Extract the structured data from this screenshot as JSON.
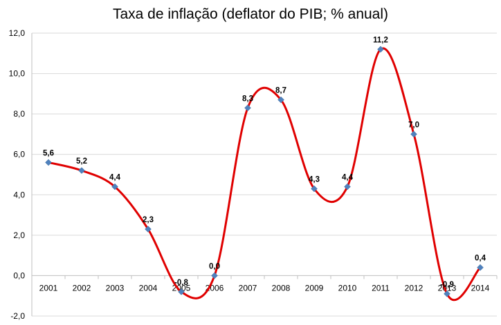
{
  "chart_data": {
    "type": "line",
    "title": "Taxa de inflação (deflator do PIB; % anual)",
    "xlabel": "",
    "ylabel": "",
    "categories": [
      "2001",
      "2002",
      "2003",
      "2004",
      "2005",
      "2006",
      "2007",
      "2008",
      "2009",
      "2010",
      "2011",
      "2012",
      "2013",
      "2014"
    ],
    "series": [
      {
        "values": [
          5.6,
          5.2,
          4.4,
          2.3,
          -0.8,
          0.0,
          8.3,
          8.7,
          4.3,
          4.4,
          11.2,
          7.0,
          -0.9,
          0.4
        ],
        "data_labels": [
          "5,6",
          "5,2",
          "4,4",
          "2,3",
          "-0,8",
          "0,0",
          "8,3",
          "8,7",
          "4,3",
          "4,4",
          "11,2",
          "7,0",
          "-0,9",
          "0,4"
        ]
      }
    ],
    "ylim": [
      -2.0,
      12.0
    ],
    "y_ticks": [
      -2.0,
      0.0,
      2.0,
      4.0,
      6.0,
      8.0,
      10.0,
      12.0
    ],
    "y_tick_labels": [
      "-2,0",
      "0,0",
      "2,0",
      "4,0",
      "6,0",
      "8,0",
      "10,0",
      "12,0"
    ],
    "grid": true,
    "legend": "none",
    "smooth": true,
    "colors": {
      "line": "#e00000",
      "marker": "#4f81bd",
      "gridline": "#d9d9d9",
      "axis": "#bfbfbf"
    }
  }
}
